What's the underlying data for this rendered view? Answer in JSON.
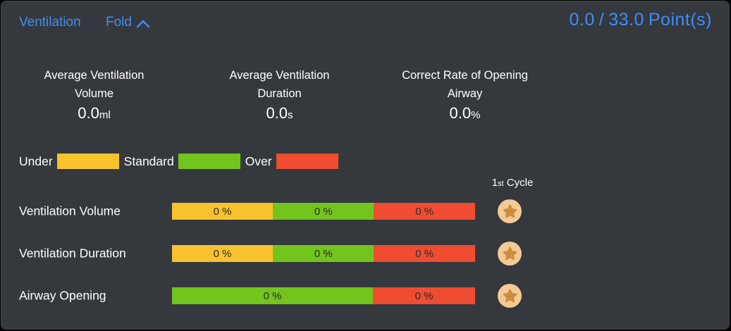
{
  "header": {
    "title": "Ventilation",
    "fold_label": "Fold",
    "points": {
      "current": "0.0",
      "separator": "/",
      "total": "33.0",
      "unit": "Point(s)"
    }
  },
  "stats": [
    {
      "label_line1": "Average Ventilation",
      "label_line2": "Volume",
      "value": "0.0",
      "unit": "ml"
    },
    {
      "label_line1": "Average Ventilation",
      "label_line2": "Duration",
      "value": "0.0",
      "unit": "s"
    },
    {
      "label_line1": "Correct Rate of Opening",
      "label_line2": "Airway",
      "value": "0.0",
      "unit": "%"
    }
  ],
  "legend": [
    {
      "label": "Under",
      "color_key": "under"
    },
    {
      "label": "Standard",
      "color_key": "standard"
    },
    {
      "label": "Over",
      "color_key": "over"
    }
  ],
  "cycle": {
    "number": "1",
    "ordinal": "st",
    "label": "Cycle"
  },
  "rows": [
    {
      "label": "Ventilation Volume",
      "segments": [
        {
          "color_key": "under",
          "value": "0 %",
          "width_pct": 33.3
        },
        {
          "color_key": "standard",
          "value": "0 %",
          "width_pct": 33.3
        },
        {
          "color_key": "over",
          "value": "0 %",
          "width_pct": 33.4
        }
      ]
    },
    {
      "label": "Ventilation Duration",
      "segments": [
        {
          "color_key": "under",
          "value": "0 %",
          "width_pct": 33.3
        },
        {
          "color_key": "standard",
          "value": "0 %",
          "width_pct": 33.3
        },
        {
          "color_key": "over",
          "value": "0 %",
          "width_pct": 33.4
        }
      ]
    },
    {
      "label": "Airway Opening",
      "segments": [
        {
          "color_key": "standard",
          "value": "0 %",
          "width_pct": 66.3
        },
        {
          "color_key": "over",
          "value": "0 %",
          "width_pct": 33.7
        }
      ]
    }
  ],
  "colors": {
    "accent_blue": "#3e8ef7",
    "under": "#f8c32d",
    "standard": "#73c41d",
    "over": "#ef4c31",
    "star_badge_bg": "#f3ca96",
    "star_icon": "#cf8c3e"
  }
}
